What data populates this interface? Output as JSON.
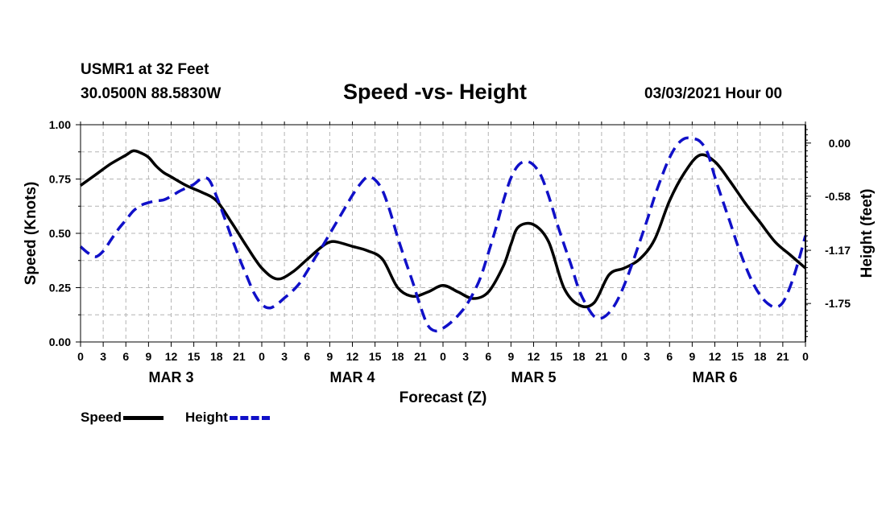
{
  "header": {
    "station": "USMR1 at 32 Feet",
    "coords": "30.0500N 88.5830W",
    "title": "Speed -vs- Height",
    "datetime": "03/03/2021 Hour 00"
  },
  "legend": {
    "speed": "Speed",
    "height": "Height"
  },
  "colors": {
    "speed": "#000000",
    "height": "#1010c8",
    "grid": "#b4b4b4"
  },
  "chart_data": {
    "type": "line",
    "title": "Speed -vs- Height",
    "xlabel": "Forecast (Z)",
    "ylabel": "Speed (Knots)",
    "y2label": "Height (feet)",
    "xlim": [
      0,
      96
    ],
    "ylim": [
      0,
      1.0
    ],
    "y2lim": [
      -2.17,
      0.2
    ],
    "x_tick_labels": [
      "0",
      "3",
      "6",
      "9",
      "12",
      "15",
      "18",
      "21",
      "0",
      "3",
      "6",
      "9",
      "12",
      "15",
      "18",
      "21",
      "0",
      "3",
      "6",
      "9",
      "12",
      "15",
      "18",
      "21",
      "0",
      "3",
      "6",
      "9",
      "12",
      "15",
      "18",
      "21",
      "0"
    ],
    "y_ticks": [
      "0.00",
      "0.25",
      "0.50",
      "0.75",
      "1.00"
    ],
    "y2_ticks": [
      "0.00",
      "-0.58",
      "-1.17",
      "-1.75"
    ],
    "day_labels": [
      "MAR 3",
      "MAR 4",
      "MAR 5",
      "MAR 6"
    ],
    "series": [
      {
        "name": "Speed",
        "axis": "left",
        "style": "solid",
        "x": [
          0,
          2,
          4,
          6,
          7,
          8,
          9,
          10,
          11,
          12,
          14,
          16,
          18,
          20,
          22,
          24,
          26,
          28,
          30,
          32,
          33,
          34,
          36,
          38,
          40,
          42,
          44,
          46,
          48,
          50,
          52,
          54,
          56,
          57,
          58,
          60,
          62,
          64,
          66,
          68,
          70,
          72,
          74,
          76,
          78,
          80,
          82,
          84,
          86,
          88,
          90,
          92,
          94,
          96
        ],
        "values": [
          0.72,
          0.77,
          0.82,
          0.86,
          0.88,
          0.87,
          0.85,
          0.81,
          0.78,
          0.76,
          0.72,
          0.69,
          0.65,
          0.55,
          0.44,
          0.34,
          0.29,
          0.32,
          0.38,
          0.44,
          0.46,
          0.46,
          0.44,
          0.42,
          0.38,
          0.25,
          0.21,
          0.23,
          0.26,
          0.23,
          0.2,
          0.23,
          0.35,
          0.45,
          0.53,
          0.54,
          0.46,
          0.25,
          0.17,
          0.18,
          0.31,
          0.34,
          0.38,
          0.47,
          0.65,
          0.78,
          0.86,
          0.83,
          0.74,
          0.64,
          0.55,
          0.46,
          0.4,
          0.34
        ]
      },
      {
        "name": "Height",
        "axis": "right",
        "style": "dashed",
        "x": [
          0,
          1,
          2,
          3,
          4,
          5,
          6,
          7,
          8,
          9,
          10,
          11,
          12,
          13,
          14,
          15,
          16,
          17,
          18,
          19,
          20,
          21,
          22,
          23,
          24,
          25,
          26,
          27,
          28,
          29,
          30,
          31,
          32,
          33,
          34,
          35,
          36,
          37,
          38,
          39,
          40,
          41,
          42,
          43,
          44,
          45,
          46,
          47,
          48,
          49,
          50,
          51,
          52,
          53,
          54,
          55,
          56,
          57,
          58,
          59,
          60,
          61,
          62,
          63,
          64,
          65,
          66,
          67,
          68,
          69,
          70,
          71,
          72,
          73,
          74,
          75,
          76,
          77,
          78,
          79,
          80,
          81,
          82,
          83,
          84,
          85,
          86,
          87,
          88,
          89,
          90,
          91,
          92,
          93,
          94,
          95,
          96
        ],
        "values": [
          -1.13,
          -1.2,
          -1.24,
          -1.18,
          -1.06,
          -0.94,
          -0.84,
          -0.74,
          -0.68,
          -0.65,
          -0.63,
          -0.62,
          -0.58,
          -0.53,
          -0.49,
          -0.45,
          -0.39,
          -0.4,
          -0.58,
          -0.8,
          -1.03,
          -1.25,
          -1.45,
          -1.64,
          -1.76,
          -1.8,
          -1.76,
          -1.69,
          -1.62,
          -1.53,
          -1.4,
          -1.26,
          -1.13,
          -0.99,
          -0.85,
          -0.71,
          -0.57,
          -0.45,
          -0.37,
          -0.4,
          -0.52,
          -0.75,
          -1.03,
          -1.28,
          -1.52,
          -1.78,
          -1.99,
          -2.05,
          -2.02,
          -1.96,
          -1.88,
          -1.78,
          -1.64,
          -1.46,
          -1.2,
          -0.93,
          -0.63,
          -0.38,
          -0.24,
          -0.2,
          -0.24,
          -0.36,
          -0.58,
          -0.85,
          -1.1,
          -1.34,
          -1.6,
          -1.77,
          -1.89,
          -1.91,
          -1.85,
          -1.73,
          -1.55,
          -1.33,
          -1.09,
          -0.85,
          -0.59,
          -0.36,
          -0.16,
          -0.02,
          0.05,
          0.05,
          0.02,
          -0.1,
          -0.37,
          -0.62,
          -0.86,
          -1.11,
          -1.33,
          -1.52,
          -1.66,
          -1.75,
          -1.79,
          -1.74,
          -1.56,
          -1.31,
          -1.01
        ]
      }
    ]
  }
}
